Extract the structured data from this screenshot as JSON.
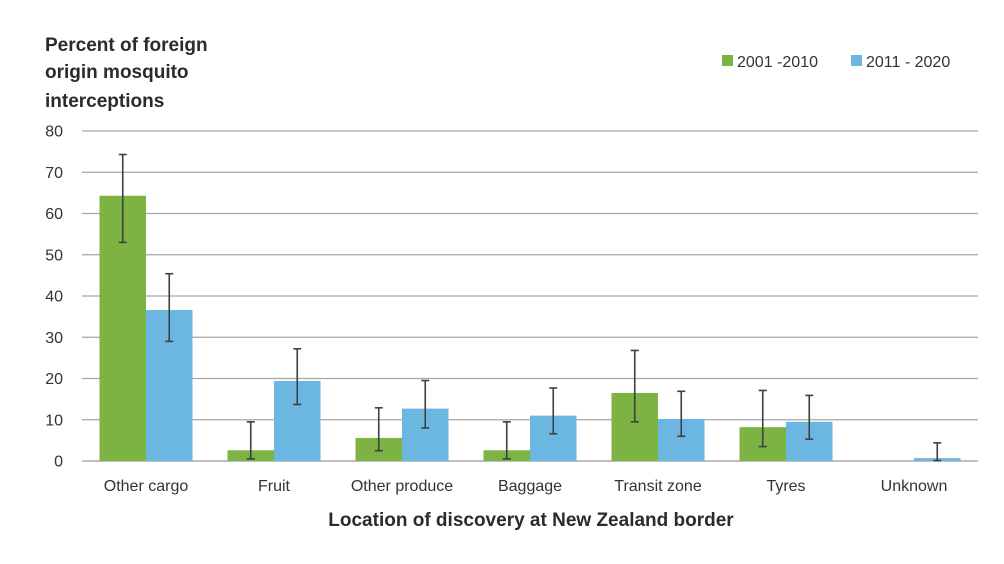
{
  "chart_data": {
    "type": "bar",
    "ylabel": [
      "Percent of foreign",
      "origin mosquito",
      "interceptions"
    ],
    "xlabel": "Location of discovery at New Zealand border",
    "ylim": [
      0,
      80
    ],
    "yticks": [
      "0",
      "10",
      "20",
      "30",
      "40",
      "50",
      "60",
      "70",
      "80"
    ],
    "grid": true,
    "legend_position": "top-right",
    "categories": [
      "Other cargo",
      "Fruit",
      "Other produce",
      "Baggage",
      "Transit zone",
      "Tyres",
      "Unknown"
    ],
    "series": [
      {
        "name": "2001 -2010",
        "color": "#7cb342",
        "values": [
          64.3,
          2.6,
          5.6,
          2.6,
          16.5,
          8.2,
          0
        ],
        "err_low": [
          53,
          0.5,
          2.5,
          0.5,
          9.5,
          3.5,
          null
        ],
        "err_high": [
          74.3,
          9.5,
          12.9,
          9.5,
          26.8,
          17.1,
          null
        ]
      },
      {
        "name": "2011 - 2020",
        "color": "#6cb6e2",
        "values": [
          36.6,
          19.4,
          12.7,
          11,
          10.2,
          9.5,
          0.7
        ],
        "err_low": [
          29,
          13.7,
          8,
          6.6,
          6,
          5.3,
          0.1
        ],
        "err_high": [
          45.4,
          27.2,
          19.5,
          17.7,
          16.9,
          15.9,
          4.4
        ]
      }
    ]
  }
}
